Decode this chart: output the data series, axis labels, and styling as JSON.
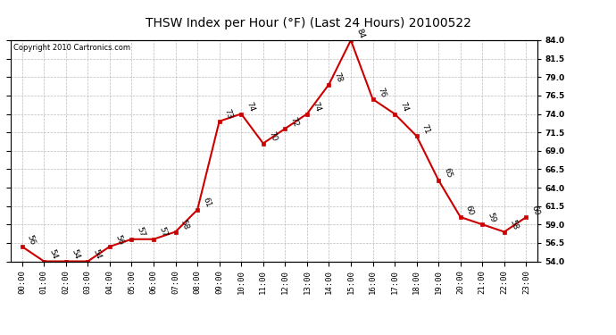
{
  "title": "THSW Index per Hour (°F) (Last 24 Hours) 20100522",
  "copyright": "Copyright 2010 Cartronics.com",
  "hours": [
    "00:00",
    "01:00",
    "02:00",
    "03:00",
    "04:00",
    "05:00",
    "06:00",
    "07:00",
    "08:00",
    "09:00",
    "10:00",
    "11:00",
    "12:00",
    "13:00",
    "14:00",
    "15:00",
    "16:00",
    "17:00",
    "18:00",
    "19:00",
    "20:00",
    "21:00",
    "22:00",
    "23:00"
  ],
  "values": [
    56,
    54,
    54,
    54,
    56,
    57,
    57,
    58,
    61,
    73,
    74,
    70,
    72,
    74,
    78,
    84,
    76,
    74,
    71,
    65,
    60,
    59,
    58,
    60
  ],
  "ylim_min": 54.0,
  "ylim_max": 84.0,
  "yticks": [
    54.0,
    56.5,
    59.0,
    61.5,
    64.0,
    66.5,
    69.0,
    71.5,
    74.0,
    76.5,
    79.0,
    81.5,
    84.0
  ],
  "line_color": "#cc0000",
  "marker_color": "#cc0000",
  "bg_color": "#ffffff",
  "grid_color": "#bbbbbb",
  "title_fontsize": 10,
  "tick_fontsize": 6.5,
  "annotation_fontsize": 6.5,
  "copyright_fontsize": 6
}
